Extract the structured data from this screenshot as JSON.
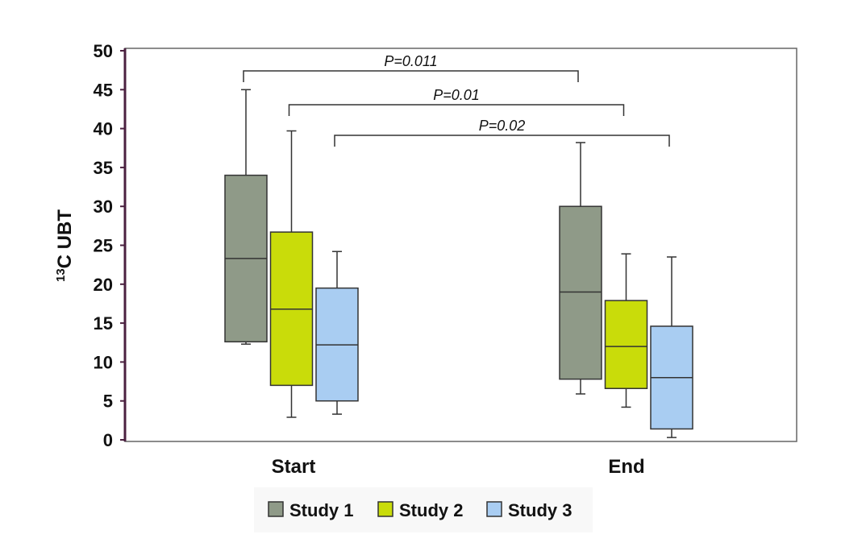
{
  "chart_data": {
    "type": "box",
    "ylabel_sup": "13",
    "ylabel_main": "C UBT",
    "ylim": [
      0,
      50
    ],
    "yticks": [
      "0",
      "5",
      "10",
      "15",
      "20",
      "25",
      "30",
      "35",
      "40",
      "45",
      "50"
    ],
    "categories": [
      "Start",
      "End"
    ],
    "series": [
      {
        "name": "Study 1",
        "color": "#8f9a88",
        "boxes": [
          {
            "min": 12.3,
            "q1": 12.6,
            "median": 23.3,
            "q3": 34.0,
            "max": 45.0
          },
          {
            "min": 5.9,
            "q1": 7.8,
            "median": 19.0,
            "q3": 30.0,
            "max": 38.2
          }
        ]
      },
      {
        "name": "Study 2",
        "color": "#c9dc0a",
        "boxes": [
          {
            "min": 2.9,
            "q1": 7.0,
            "median": 16.8,
            "q3": 26.7,
            "max": 39.7
          },
          {
            "min": 4.2,
            "q1": 6.6,
            "median": 12.0,
            "q3": 17.9,
            "max": 23.9
          }
        ]
      },
      {
        "name": "Study 3",
        "color": "#a9cdf2",
        "boxes": [
          {
            "min": 3.3,
            "q1": 5.0,
            "median": 12.2,
            "q3": 19.5,
            "max": 24.2
          },
          {
            "min": 0.3,
            "q1": 1.4,
            "median": 8.0,
            "q3": 14.6,
            "max": 23.5
          }
        ]
      }
    ],
    "annotations": [
      {
        "text": "P=0.011",
        "series": 0
      },
      {
        "text": "P=0.01",
        "series": 1
      },
      {
        "text": "P=0.02",
        "series": 2
      }
    ],
    "legend": {
      "position": "bottom",
      "entries": [
        "Study 1",
        "Study 2",
        "Study 3"
      ]
    }
  }
}
